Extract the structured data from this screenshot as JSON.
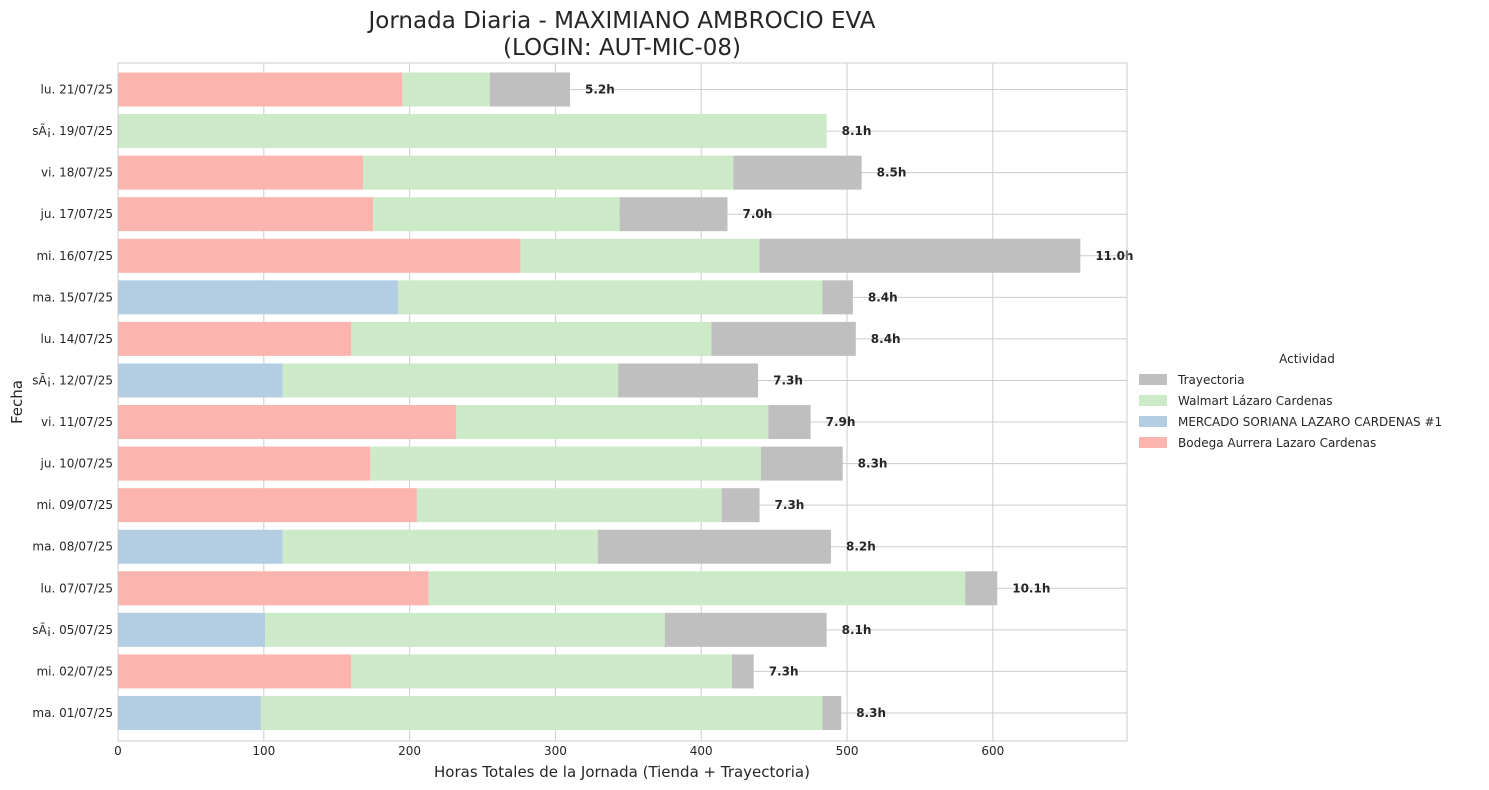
{
  "chart_data": {
    "type": "bar",
    "orientation": "horizontal",
    "stacked": true,
    "title_line1": "Jornada Diaria - MAXIMIANO AMBROCIO EVA",
    "title_line2": "(LOGIN: AUT-MIC-08)",
    "xlabel": "Horas Totales de la Jornada (Tienda + Trayectoria)",
    "ylabel": "Fecha",
    "xlim": [
      0,
      692
    ],
    "xticks": [
      0,
      100,
      200,
      300,
      400,
      500,
      600
    ],
    "grid": true,
    "legend_placement": "center-right",
    "legend_title": "Actividad",
    "categories": [
      "lu. 21/07/25",
      "sÃ¡. 19/07/25",
      "vi. 18/07/25",
      "ju. 17/07/25",
      "mi. 16/07/25",
      "ma. 15/07/25",
      "lu. 14/07/25",
      "sÃ¡. 12/07/25",
      "vi. 11/07/25",
      "ju. 10/07/25",
      "mi. 09/07/25",
      "ma. 08/07/25",
      "lu. 07/07/25",
      "sÃ¡. 05/07/25",
      "mi. 02/07/25",
      "ma. 01/07/25"
    ],
    "segments": [
      [
        {
          "series": "Bodega Aurrera Lazaro Cardenas",
          "value": 195
        },
        {
          "series": "Walmart Lázaro Cardenas",
          "value": 60
        },
        {
          "series": "Trayectoria",
          "value": 55
        }
      ],
      [
        {
          "series": "Walmart Lázaro Cardenas",
          "value": 486
        }
      ],
      [
        {
          "series": "Bodega Aurrera Lazaro Cardenas",
          "value": 168
        },
        {
          "series": "Walmart Lázaro Cardenas",
          "value": 254
        },
        {
          "series": "Trayectoria",
          "value": 88
        }
      ],
      [
        {
          "series": "Bodega Aurrera Lazaro Cardenas",
          "value": 175
        },
        {
          "series": "Walmart Lázaro Cardenas",
          "value": 169
        },
        {
          "series": "Trayectoria",
          "value": 74
        }
      ],
      [
        {
          "series": "Bodega Aurrera Lazaro Cardenas",
          "value": 276
        },
        {
          "series": "Walmart Lázaro Cardenas",
          "value": 164
        },
        {
          "series": "Trayectoria",
          "value": 220
        }
      ],
      [
        {
          "series": "MERCADO SORIANA LAZARO CARDENAS #1",
          "value": 192
        },
        {
          "series": "Walmart Lázaro Cardenas",
          "value": 291
        },
        {
          "series": "Trayectoria",
          "value": 21
        }
      ],
      [
        {
          "series": "Bodega Aurrera Lazaro Cardenas",
          "value": 160
        },
        {
          "series": "Walmart Lázaro Cardenas",
          "value": 247
        },
        {
          "series": "Trayectoria",
          "value": 99
        }
      ],
      [
        {
          "series": "MERCADO SORIANA LAZARO CARDENAS #1",
          "value": 113
        },
        {
          "series": "Walmart Lázaro Cardenas",
          "value": 230
        },
        {
          "series": "Trayectoria",
          "value": 96
        }
      ],
      [
        {
          "series": "Bodega Aurrera Lazaro Cardenas",
          "value": 232
        },
        {
          "series": "Walmart Lázaro Cardenas",
          "value": 214
        },
        {
          "series": "Trayectoria",
          "value": 29
        }
      ],
      [
        {
          "series": "Bodega Aurrera Lazaro Cardenas",
          "value": 173
        },
        {
          "series": "Walmart Lázaro Cardenas",
          "value": 268
        },
        {
          "series": "Trayectoria",
          "value": 56
        }
      ],
      [
        {
          "series": "Bodega Aurrera Lazaro Cardenas",
          "value": 205
        },
        {
          "series": "Walmart Lázaro Cardenas",
          "value": 209
        },
        {
          "series": "Trayectoria",
          "value": 26
        }
      ],
      [
        {
          "series": "MERCADO SORIANA LAZARO CARDENAS #1",
          "value": 113
        },
        {
          "series": "Walmart Lázaro Cardenas",
          "value": 216
        },
        {
          "series": "Trayectoria",
          "value": 160
        }
      ],
      [
        {
          "series": "Bodega Aurrera Lazaro Cardenas",
          "value": 213
        },
        {
          "series": "Walmart Lázaro Cardenas",
          "value": 368
        },
        {
          "series": "Trayectoria",
          "value": 22
        }
      ],
      [
        {
          "series": "MERCADO SORIANA LAZARO CARDENAS #1",
          "value": 101
        },
        {
          "series": "Walmart Lázaro Cardenas",
          "value": 274
        },
        {
          "series": "Trayectoria",
          "value": 111
        }
      ],
      [
        {
          "series": "Bodega Aurrera Lazaro Cardenas",
          "value": 160
        },
        {
          "series": "Walmart Lázaro Cardenas",
          "value": 261
        },
        {
          "series": "Trayectoria",
          "value": 15
        }
      ],
      [
        {
          "series": "MERCADO SORIANA LAZARO CARDENAS #1",
          "value": 98
        },
        {
          "series": "Walmart Lázaro Cardenas",
          "value": 385
        },
        {
          "series": "Trayectoria",
          "value": 13
        }
      ]
    ],
    "total_labels": [
      "5.2h",
      "8.1h",
      "8.5h",
      "7.0h",
      "11.0h",
      "8.4h",
      "8.4h",
      "7.3h",
      "7.9h",
      "8.3h",
      "7.3h",
      "8.2h",
      "10.1h",
      "8.1h",
      "7.3h",
      "8.3h"
    ],
    "legend": [
      {
        "name": "Trayectoria",
        "color": "#bfbfbf"
      },
      {
        "name": "Walmart Lázaro Cardenas",
        "color": "#cdeac8"
      },
      {
        "name": "MERCADO SORIANA LAZARO CARDENAS #1",
        "color": "#b3cde3"
      },
      {
        "name": "Bodega Aurrera Lazaro Cardenas",
        "color": "#fbb4ae"
      }
    ],
    "colors": {
      "Trayectoria": "#bfbfbf",
      "Walmart Lázaro Cardenas": "#cdeac8",
      "MERCADO SORIANA LAZARO CARDENAS #1": "#b3cde3",
      "Bodega Aurrera Lazaro Cardenas": "#fbb4ae"
    }
  }
}
